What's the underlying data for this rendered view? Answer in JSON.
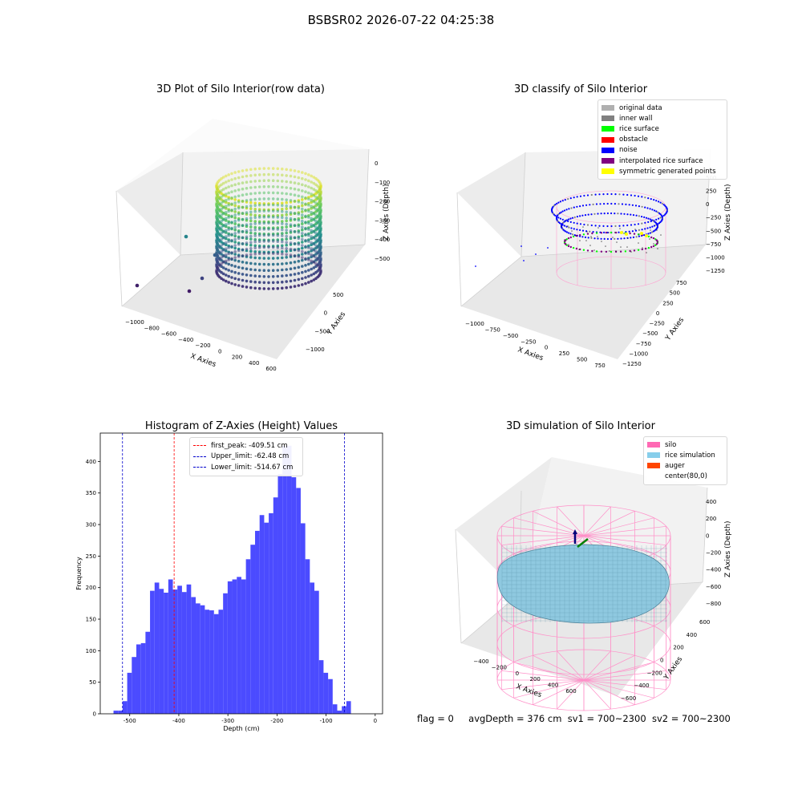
{
  "suptitle": "BSBSR02 2026-07-22 04:25:38",
  "footer": {
    "flag": "flag = 0",
    "avg_depth": "avgDepth = 376 cm",
    "sv1": "sv1 = 700~2300",
    "sv2": "sv2 = 700~2300"
  },
  "chart_data": [
    {
      "type": "scatter",
      "projection": "3d",
      "title": "3D Plot of Silo Interior(row data)",
      "xlabel": "X Axies",
      "ylabel": "Y Axies",
      "zlabel": "Z Axies (Depth)",
      "x_ticks": [
        "−1000",
        "−800",
        "−600",
        "−400",
        "−200",
        "0",
        "200",
        "400",
        "600"
      ],
      "y_ticks": [
        "−1000",
        "−500",
        "0",
        "500"
      ],
      "z_ticks": [
        "−500",
        "−400",
        "−300",
        "−200",
        "−100",
        "0"
      ],
      "colormap": "viridis",
      "description_points": "ring of scanned points of silo wall, depth from about −50 to −520"
    },
    {
      "type": "scatter",
      "projection": "3d",
      "title": "3D classify of Silo Interior",
      "x_ticks": [
        "−1000",
        "−750",
        "−500",
        "−250",
        "0",
        "250",
        "500",
        "750"
      ],
      "y_ticks": [
        "−1250",
        "−1000",
        "−750",
        "−500",
        "−250",
        "0",
        "250",
        "500",
        "750"
      ],
      "z_ticks": [
        "−1250",
        "−1000",
        "−750",
        "−500",
        "−250",
        "0",
        "250",
        "500"
      ],
      "xlabel": "X Axies",
      "ylabel": "Y Axies",
      "zlabel": "Z Axies (Depth)",
      "legend_position": "upper right",
      "legend": [
        {
          "label": "original data",
          "color": "#b0b0b0"
        },
        {
          "label": "inner wall",
          "color": "#808080"
        },
        {
          "label": "rice surface",
          "color": "#00ff00"
        },
        {
          "label": "obstacle",
          "color": "#ff0000"
        },
        {
          "label": "noise",
          "color": "#0000ff"
        },
        {
          "label": "interpolated rice surface",
          "color": "#800080"
        },
        {
          "label": "symmetric generated points",
          "color": "#ffff00"
        }
      ]
    },
    {
      "type": "bar",
      "title": "Histogram of Z-Axies (Height) Values",
      "xlabel": "Depth (cm)",
      "ylabel": "Frequency",
      "xlim": [
        -560,
        15
      ],
      "ylim": [
        0,
        445
      ],
      "x_ticks": [
        -500,
        -400,
        -300,
        -200,
        -100,
        0
      ],
      "y_ticks": [
        0,
        50,
        100,
        150,
        200,
        250,
        300,
        350,
        400
      ],
      "bar_color": "#4b4bff",
      "bin_start": -533,
      "bin_width": 9.3,
      "values": [
        5,
        5,
        20,
        65,
        90,
        110,
        112,
        130,
        195,
        208,
        198,
        192,
        213,
        197,
        203,
        193,
        205,
        185,
        175,
        172,
        165,
        164,
        158,
        165,
        191,
        210,
        213,
        217,
        213,
        245,
        268,
        290,
        315,
        303,
        318,
        343,
        380,
        425,
        425,
        375,
        358,
        302,
        245,
        208,
        195,
        85,
        65,
        55,
        15,
        5,
        12,
        20
      ],
      "vlines": [
        {
          "label": "first_peak: -409.51 cm",
          "x": -409.51,
          "color": "#ff0000"
        },
        {
          "label": "Upper_limit: -62.48 cm",
          "x": -62.48,
          "color": "#0000cc"
        },
        {
          "label": "Lower_limit: -514.67 cm",
          "x": -514.67,
          "color": "#0000cc"
        }
      ],
      "legend_position": "upper center"
    },
    {
      "type": "surface",
      "projection": "3d",
      "title": "3D simulation of Silo Interior",
      "x_ticks": [
        "−400",
        "−200",
        "0",
        "200",
        "400",
        "600"
      ],
      "y_ticks": [
        "−600",
        "−400",
        "−200",
        "0",
        "200",
        "400",
        "600"
      ],
      "z_ticks": [
        "−800",
        "−600",
        "−400",
        "−200",
        "0",
        "200",
        "400"
      ],
      "xlabel": "X Axies",
      "ylabel": "Y Axies",
      "zlabel": "Z Axies (Depth)",
      "legend_position": "upper right",
      "legend": [
        {
          "label": "silo",
          "color": "#ff69b4"
        },
        {
          "label": "rice simulation",
          "color": "#87ceeb"
        },
        {
          "label": "auger",
          "color": "#ff4500"
        },
        {
          "label": "center(80,0)",
          "color": "#ffffff"
        }
      ]
    }
  ]
}
